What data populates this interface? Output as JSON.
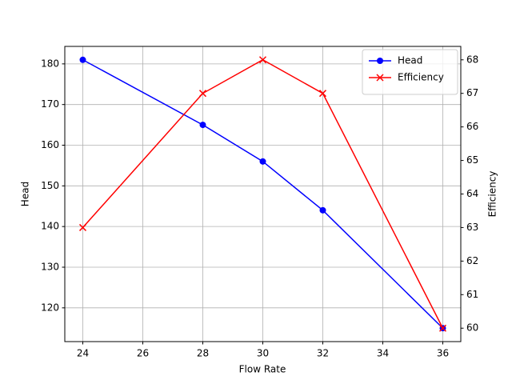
{
  "chart_data": {
    "type": "line",
    "x": [
      24,
      28,
      30,
      32,
      36
    ],
    "series": [
      {
        "name": "Head",
        "color": "blue",
        "marker": "o",
        "axis": "y",
        "values": [
          181,
          165,
          156,
          144,
          115
        ]
      },
      {
        "name": "Efficiency",
        "color": "red",
        "marker": "x",
        "axis": "y2",
        "values": [
          63,
          67,
          68,
          67,
          60
        ]
      }
    ],
    "xlabel": "Flow Rate",
    "ylabel": "Head",
    "y2label": "Efficiency",
    "xlim": [
      23.4,
      36.6
    ],
    "xticks": [
      24,
      26,
      28,
      30,
      32,
      34,
      36
    ],
    "ylim": [
      111.7,
      184.3
    ],
    "yticks": [
      120,
      130,
      140,
      150,
      160,
      170,
      180
    ],
    "y2lim": [
      59.6,
      68.4
    ],
    "y2ticks": [
      60,
      61,
      62,
      63,
      64,
      65,
      66,
      67,
      68
    ],
    "grid": true,
    "legend": "upper right"
  }
}
